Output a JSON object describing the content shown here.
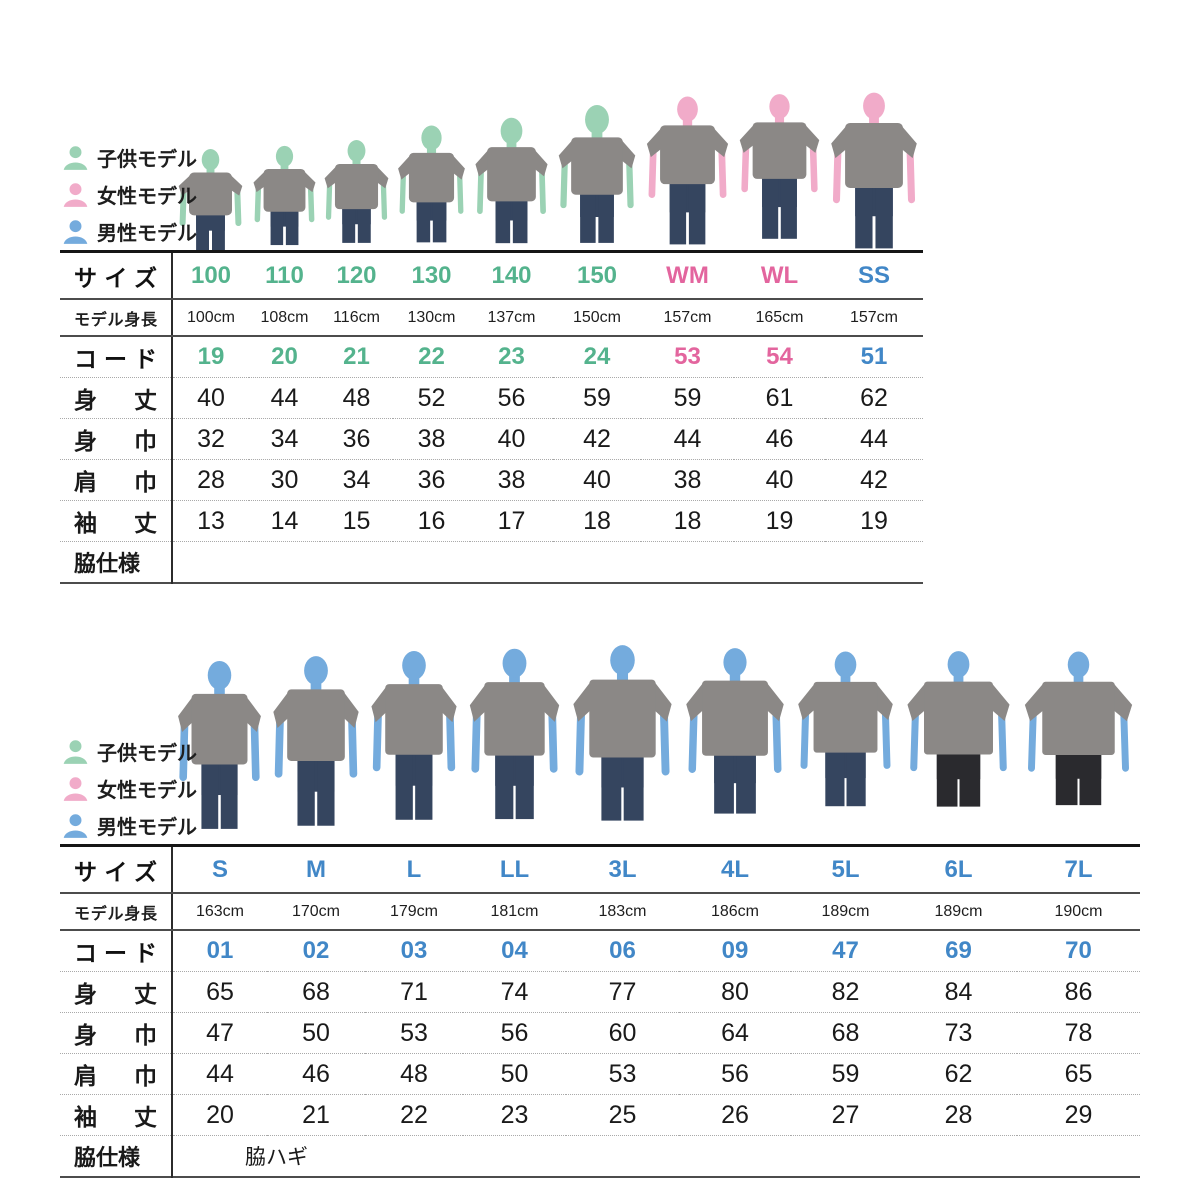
{
  "colors": {
    "kids_model": "#9bd2b4",
    "women_model": "#f1abc9",
    "men_model": "#74abdd",
    "kids_text": "#54b38d",
    "women_text": "#e3659e",
    "men_text": "#4187c7",
    "tshirt": "#8b8886",
    "jeans": "#35455f",
    "black_pants": "#2a2a2e"
  },
  "legend": [
    {
      "id": "kids",
      "label": "子供モデル"
    },
    {
      "id": "women",
      "label": "女性モデル"
    },
    {
      "id": "men",
      "label": "男性モデル"
    }
  ],
  "row_labels": {
    "size": "サイズ",
    "model_height": "モデル身長",
    "code": "コード",
    "body_length": "身丈",
    "body_width": "身巾",
    "shoulder_width": "肩巾",
    "sleeve_length": "袖丈",
    "side_spec": "脇仕様"
  },
  "tables": [
    {
      "id": "kids-women",
      "side_spec_value": "",
      "columns": [
        {
          "size": "100",
          "text": "kids",
          "model": "kids",
          "model_height": "100cm",
          "code": "19",
          "body_length": "40",
          "body_width": "32",
          "shoulder_width": "28",
          "sleeve_length": "13",
          "pants": "jeans"
        },
        {
          "size": "110",
          "text": "kids",
          "model": "kids",
          "model_height": "108cm",
          "code": "20",
          "body_length": "44",
          "body_width": "34",
          "shoulder_width": "30",
          "sleeve_length": "14",
          "pants": "jeans"
        },
        {
          "size": "120",
          "text": "kids",
          "model": "kids",
          "model_height": "116cm",
          "code": "21",
          "body_length": "48",
          "body_width": "36",
          "shoulder_width": "34",
          "sleeve_length": "15",
          "pants": "jeans"
        },
        {
          "size": "130",
          "text": "kids",
          "model": "kids",
          "model_height": "130cm",
          "code": "22",
          "body_length": "52",
          "body_width": "38",
          "shoulder_width": "36",
          "sleeve_length": "16",
          "pants": "jeans"
        },
        {
          "size": "140",
          "text": "kids",
          "model": "kids",
          "model_height": "137cm",
          "code": "23",
          "body_length": "56",
          "body_width": "40",
          "shoulder_width": "38",
          "sleeve_length": "17",
          "pants": "jeans"
        },
        {
          "size": "150",
          "text": "kids",
          "model": "kids",
          "model_height": "150cm",
          "code": "24",
          "body_length": "59",
          "body_width": "42",
          "shoulder_width": "40",
          "sleeve_length": "18",
          "pants": "jeans"
        },
        {
          "size": "WM",
          "text": "women",
          "model": "women",
          "model_height": "157cm",
          "code": "53",
          "body_length": "59",
          "body_width": "44",
          "shoulder_width": "38",
          "sleeve_length": "18",
          "pants": "jeans"
        },
        {
          "size": "WL",
          "text": "women",
          "model": "women",
          "model_height": "165cm",
          "code": "54",
          "body_length": "61",
          "body_width": "46",
          "shoulder_width": "40",
          "sleeve_length": "19",
          "pants": "jeans"
        },
        {
          "size": "SS",
          "text": "men",
          "model": "women",
          "model_height": "157cm",
          "code": "51",
          "body_length": "62",
          "body_width": "44",
          "shoulder_width": "42",
          "sleeve_length": "19",
          "pants": "jeans"
        }
      ]
    },
    {
      "id": "men",
      "side_spec_value": "脇ハギ",
      "columns": [
        {
          "size": "S",
          "text": "men",
          "model": "men",
          "model_height": "163cm",
          "code": "01",
          "body_length": "65",
          "body_width": "47",
          "shoulder_width": "44",
          "sleeve_length": "20",
          "pants": "jeans"
        },
        {
          "size": "M",
          "text": "men",
          "model": "men",
          "model_height": "170cm",
          "code": "02",
          "body_length": "68",
          "body_width": "50",
          "shoulder_width": "46",
          "sleeve_length": "21",
          "pants": "jeans"
        },
        {
          "size": "L",
          "text": "men",
          "model": "men",
          "model_height": "179cm",
          "code": "03",
          "body_length": "71",
          "body_width": "53",
          "shoulder_width": "48",
          "sleeve_length": "22",
          "pants": "jeans"
        },
        {
          "size": "LL",
          "text": "men",
          "model": "men",
          "model_height": "181cm",
          "code": "04",
          "body_length": "74",
          "body_width": "56",
          "shoulder_width": "50",
          "sleeve_length": "23",
          "pants": "jeans"
        },
        {
          "size": "3L",
          "text": "men",
          "model": "men",
          "model_height": "183cm",
          "code": "06",
          "body_length": "77",
          "body_width": "60",
          "shoulder_width": "53",
          "sleeve_length": "25",
          "pants": "jeans"
        },
        {
          "size": "4L",
          "text": "men",
          "model": "men",
          "model_height": "186cm",
          "code": "09",
          "body_length": "80",
          "body_width": "64",
          "shoulder_width": "56",
          "sleeve_length": "26",
          "pants": "jeans"
        },
        {
          "size": "5L",
          "text": "men",
          "model": "men",
          "model_height": "189cm",
          "code": "47",
          "body_length": "82",
          "body_width": "68",
          "shoulder_width": "59",
          "sleeve_length": "27",
          "pants": "jeans"
        },
        {
          "size": "6L",
          "text": "men",
          "model": "men",
          "model_height": "189cm",
          "code": "69",
          "body_length": "84",
          "body_width": "73",
          "shoulder_width": "62",
          "sleeve_length": "28",
          "pants": "black"
        },
        {
          "size": "7L",
          "text": "men",
          "model": "men",
          "model_height": "190cm",
          "code": "70",
          "body_length": "86",
          "body_width": "78",
          "shoulder_width": "65",
          "sleeve_length": "29",
          "pants": "black"
        }
      ]
    }
  ]
}
